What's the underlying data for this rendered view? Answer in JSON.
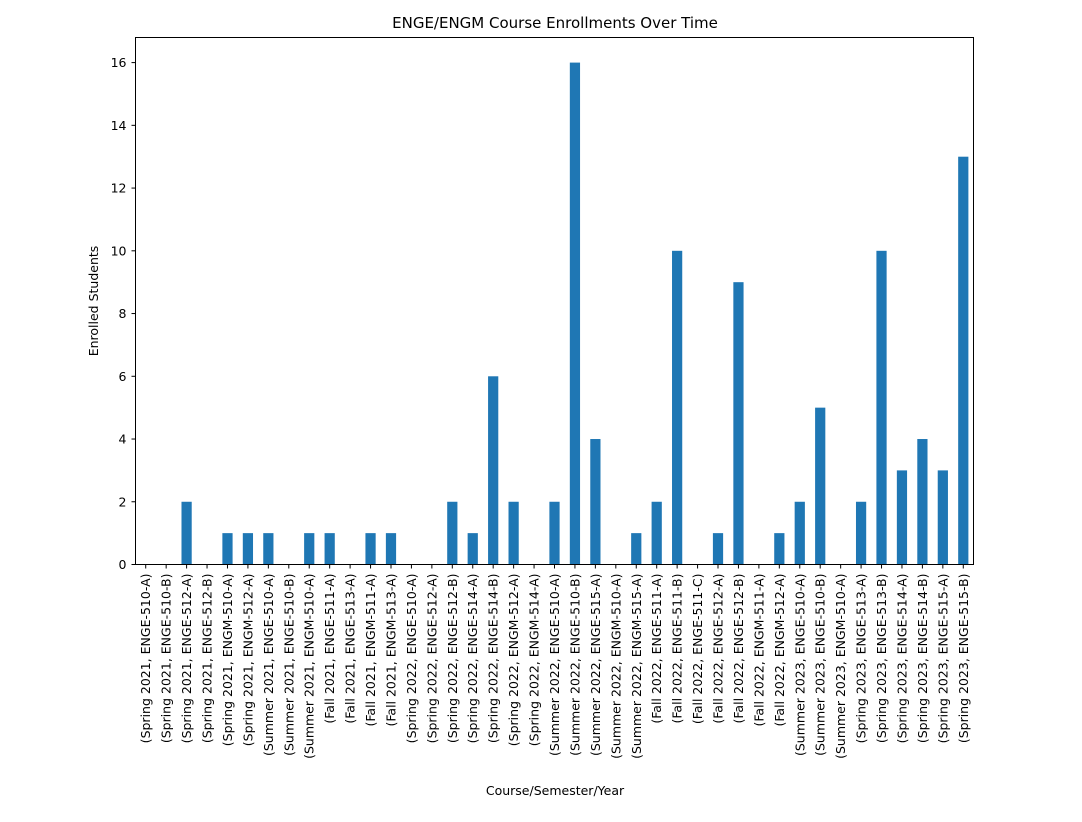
{
  "chart_data": {
    "type": "bar",
    "title": "ENGE/ENGM Course Enrollments Over Time",
    "xlabel": "Course/Semester/Year",
    "ylabel": "Enrolled Students",
    "ylim": [
      0,
      16.8
    ],
    "yticks": [
      0,
      2,
      4,
      6,
      8,
      10,
      12,
      14,
      16
    ],
    "grid": false,
    "legend": "none",
    "bar_color": "#1f77b4",
    "categories": [
      "(Spring 2021, ENGE-510-A)",
      "(Spring 2021, ENGE-510-B)",
      "(Spring 2021, ENGE-512-A)",
      "(Spring 2021, ENGE-512-B)",
      "(Spring 2021, ENGM-510-A)",
      "(Spring 2021, ENGM-512-A)",
      "(Summer 2021, ENGE-510-A)",
      "(Summer 2021, ENGE-510-B)",
      "(Summer 2021, ENGM-510-A)",
      "(Fall 2021, ENGE-511-A)",
      "(Fall 2021, ENGE-513-A)",
      "(Fall 2021, ENGM-511-A)",
      "(Fall 2021, ENGM-513-A)",
      "(Spring 2022, ENGE-510-A)",
      "(Spring 2022, ENGE-512-A)",
      "(Spring 2022, ENGE-512-B)",
      "(Spring 2022, ENGE-514-A)",
      "(Spring 2022, ENGE-514-B)",
      "(Spring 2022, ENGM-512-A)",
      "(Spring 2022, ENGM-514-A)",
      "(Summer 2022, ENGE-510-A)",
      "(Summer 2022, ENGE-510-B)",
      "(Summer 2022, ENGE-515-A)",
      "(Summer 2022, ENGM-510-A)",
      "(Summer 2022, ENGM-515-A)",
      "(Fall 2022, ENGE-511-A)",
      "(Fall 2022, ENGE-511-B)",
      "(Fall 2022, ENGE-511-C)",
      "(Fall 2022, ENGE-512-A)",
      "(Fall 2022, ENGE-512-B)",
      "(Fall 2022, ENGM-511-A)",
      "(Fall 2022, ENGM-512-A)",
      "(Summer 2023, ENGE-510-A)",
      "(Summer 2023, ENGE-510-B)",
      "(Summer 2023, ENGM-510-A)",
      "(Spring 2023, ENGE-513-A)",
      "(Spring 2023, ENGE-513-B)",
      "(Spring 2023, ENGE-514-A)",
      "(Spring 2023, ENGE-514-B)",
      "(Spring 2023, ENGE-515-A)",
      "(Spring 2023, ENGE-515-B)"
    ],
    "values": [
      0,
      0,
      2,
      0,
      1,
      1,
      1,
      0,
      1,
      1,
      0,
      1,
      1,
      0,
      0,
      2,
      1,
      6,
      2,
      0,
      2,
      16,
      4,
      0,
      1,
      2,
      10,
      0,
      1,
      9,
      0,
      1,
      2,
      5,
      0,
      2,
      10,
      3,
      4,
      3,
      13
    ]
  }
}
